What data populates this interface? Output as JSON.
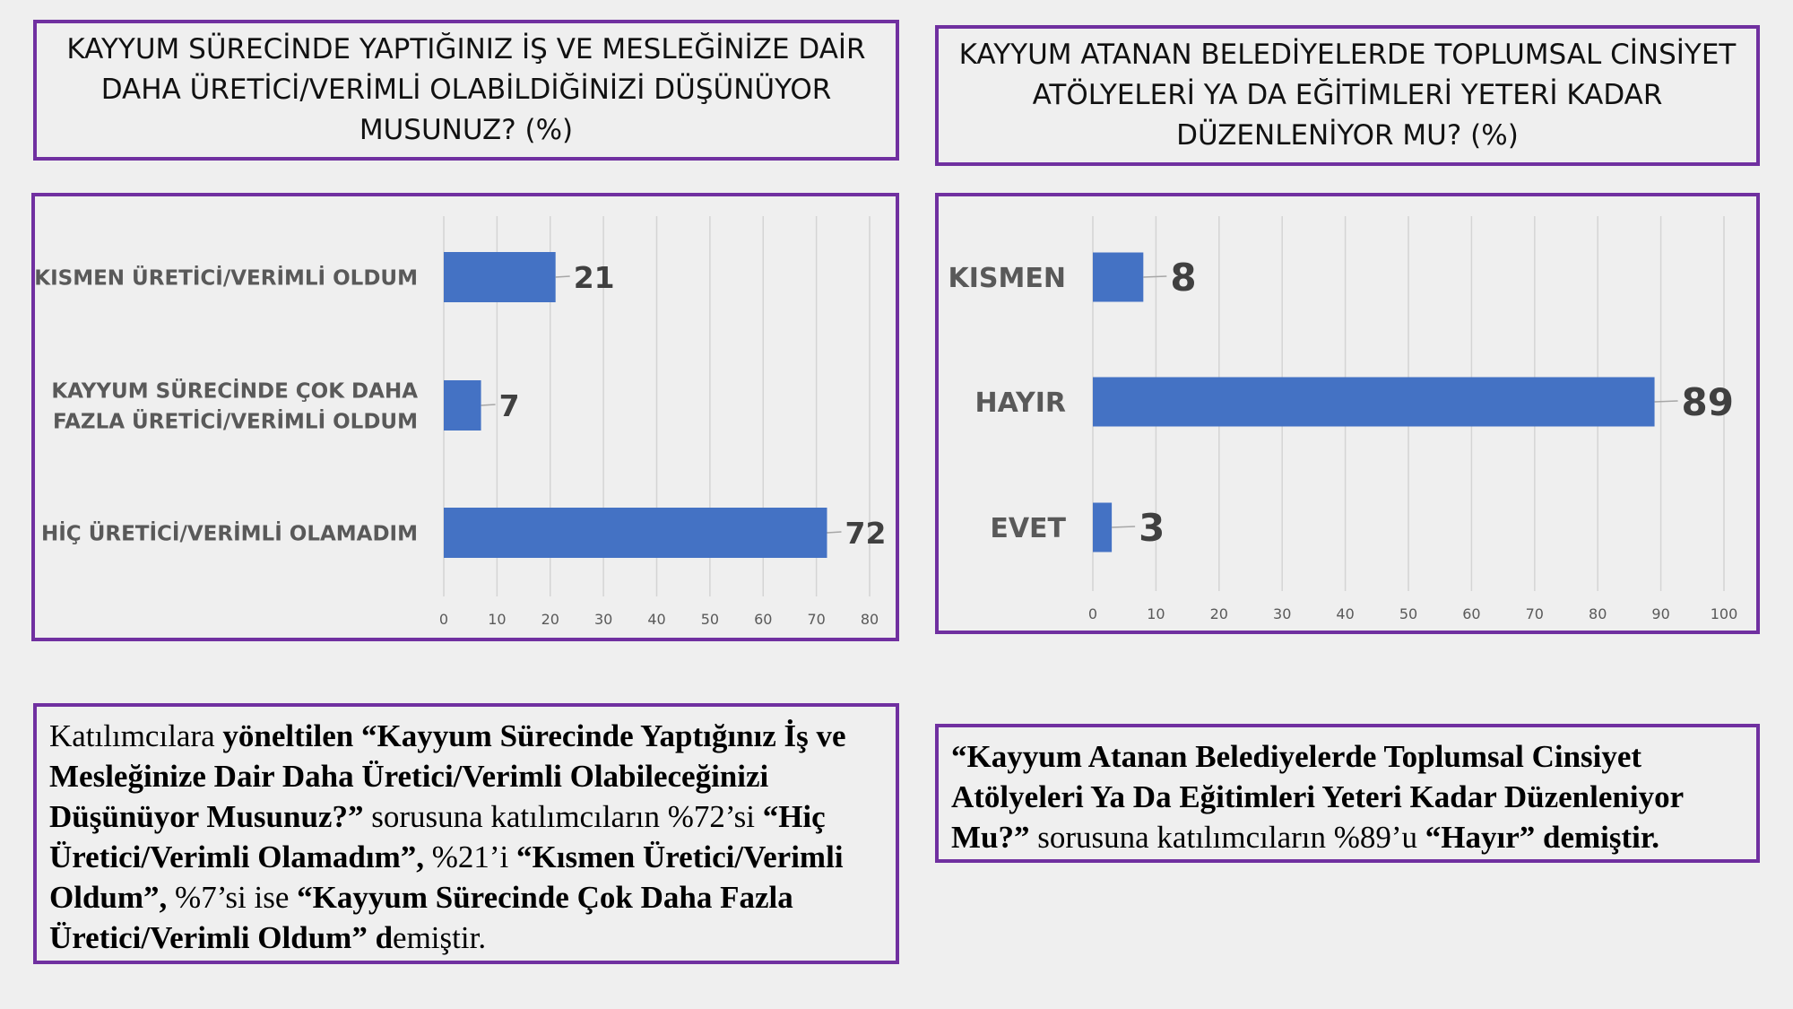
{
  "left": {
    "title": "KAYYUM SÜRECİNDE YAPTIĞINIZ İŞ VE MESLEĞİNİZE DAİR DAHA ÜRETİCİ/VERİMLİ OLABİLDİĞİNİZİ DÜŞÜNÜYOR MUSUNUZ? (%)",
    "description": {
      "p1": "Katılımcılara ",
      "b1": "yöneltilen “Kayyum Sürecinde Yaptığınız İş ve Mesleğinize Dair Daha Üretici/Verimli Olabileceğinizi Düşünüyor Musunuz?”",
      "p2": " sorusuna katılımcıların %72’si ",
      "b2": "“Hiç Üretici/Verimli Olamadım”,",
      "p3": " %21’i ",
      "b3": "“Kısmen Üretici/Verimli Oldum”,",
      "p4": " %7’si ise ",
      "b4": "“Kayyum Sürecinde Çok Daha Fazla Üretici/Verimli Oldum” d",
      "p5": "emiştir."
    }
  },
  "right": {
    "title": "KAYYUM ATANAN BELEDİYELERDE TOPLUMSAL CİNSİYET ATÖLYELERİ YA DA EĞİTİMLERİ YETERİ KADAR DÜZENLENİYOR MU? (%)",
    "description": {
      "b1": "“Kayyum Atanan Belediyelerde Toplumsal Cinsiyet Atölyeleri Ya Da Eğitimleri Yeteri Kadar Düzenleniyor Mu?”",
      "p1": " sorusuna katılımcıların %89’u ",
      "b2": "“Hayır” demiştir."
    }
  },
  "chart_data": [
    {
      "type": "bar",
      "orientation": "horizontal",
      "categories": [
        [
          "KISMEN ÜRETİCİ/VERİMLİ OLDUM"
        ],
        [
          "KAYYUM SÜRECİNDE ÇOK DAHA",
          "FAZLA ÜRETİCİ/VERİMLİ OLDUM"
        ],
        [
          "HİÇ ÜRETİCİ/VERİMLİ OLAMADIM"
        ]
      ],
      "values": [
        21,
        7,
        72
      ],
      "xlim": [
        0,
        80
      ],
      "xticks": [
        0,
        10,
        20,
        30,
        40,
        50,
        60,
        70,
        80
      ],
      "grid": true,
      "bar_color": "#4472c4"
    },
    {
      "type": "bar",
      "orientation": "horizontal",
      "categories": [
        [
          "KISMEN"
        ],
        [
          "HAYIR"
        ],
        [
          "EVET"
        ]
      ],
      "values": [
        8,
        89,
        3
      ],
      "xlim": [
        0,
        100
      ],
      "xticks": [
        0,
        10,
        20,
        30,
        40,
        50,
        60,
        70,
        80,
        90,
        100
      ],
      "grid": true,
      "bar_color": "#4472c4"
    }
  ]
}
